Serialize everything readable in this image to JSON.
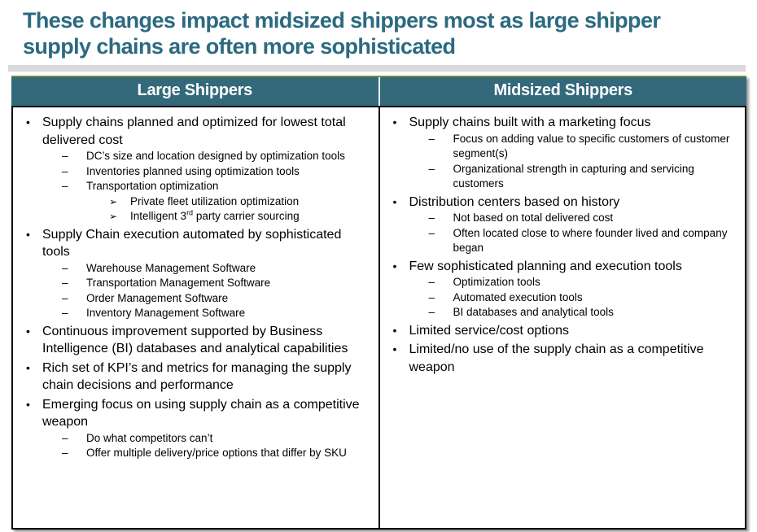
{
  "page": {
    "title": "These changes impact midsized shippers most as large shipper supply chains are often more sophisticated"
  },
  "colors": {
    "title_text": "#2C6A80",
    "header_background": "#33697B",
    "header_text": "#FFFFFF",
    "table_top_border": "#6A8F3C",
    "underline_bar": "#D9D9D9",
    "body_border": "#000000",
    "body_text": "#000000"
  },
  "markers": {
    "1": "•",
    "2": "–",
    "3": "➢"
  },
  "table": {
    "columns": [
      {
        "header": "Large Shippers",
        "items": [
          {
            "level": 1,
            "text": "Supply chains planned and optimized for lowest total delivered cost"
          },
          {
            "level": 2,
            "text": "DC’s size and location designed by optimization tools"
          },
          {
            "level": 2,
            "text": "Inventories planned using optimization tools"
          },
          {
            "level": 2,
            "text": "Transportation optimization"
          },
          {
            "level": 3,
            "text": "Private fleet utilization optimization"
          },
          {
            "level": 3,
            "pre": "Intelligent 3",
            "sup": "rd",
            "post": " party carrier sourcing"
          },
          {
            "level": 1,
            "text": "Supply Chain execution automated by sophisticated tools"
          },
          {
            "level": 2,
            "text": "Warehouse Management Software"
          },
          {
            "level": 2,
            "text": "Transportation Management Software"
          },
          {
            "level": 2,
            "text": "Order Management Software"
          },
          {
            "level": 2,
            "text": "Inventory Management Software"
          },
          {
            "level": 1,
            "text": "Continuous improvement supported by Business Intelligence (BI) databases and analytical capabilities"
          },
          {
            "level": 1,
            "text": "Rich set of KPI’s and metrics for managing the supply chain decisions and performance"
          },
          {
            "level": 1,
            "text": "Emerging focus on using supply chain as a competitive weapon"
          },
          {
            "level": 2,
            "text": "Do what competitors can’t"
          },
          {
            "level": 2,
            "text": "Offer multiple delivery/price options that differ by SKU"
          }
        ]
      },
      {
        "header": "Midsized Shippers",
        "items": [
          {
            "level": 1,
            "text": "Supply chains built with a marketing focus"
          },
          {
            "level": 2,
            "text": "Focus on adding value to specific customers of customer segment(s)"
          },
          {
            "level": 2,
            "text": "Organizational strength in capturing and servicing customers"
          },
          {
            "level": 1,
            "text": "Distribution centers based on history"
          },
          {
            "level": 2,
            "text": "Not based on total delivered cost"
          },
          {
            "level": 2,
            "text": "Often located close to where founder lived and company began"
          },
          {
            "level": 1,
            "text": "Few sophisticated planning and execution tools"
          },
          {
            "level": 2,
            "text": "Optimization tools"
          },
          {
            "level": 2,
            "text": "Automated execution tools"
          },
          {
            "level": 2,
            "text": "BI databases and analytical tools"
          },
          {
            "level": 1,
            "text": "Limited service/cost options"
          },
          {
            "level": 1,
            "text": "Limited/no use of the supply chain as a competitive weapon"
          }
        ]
      }
    ]
  }
}
